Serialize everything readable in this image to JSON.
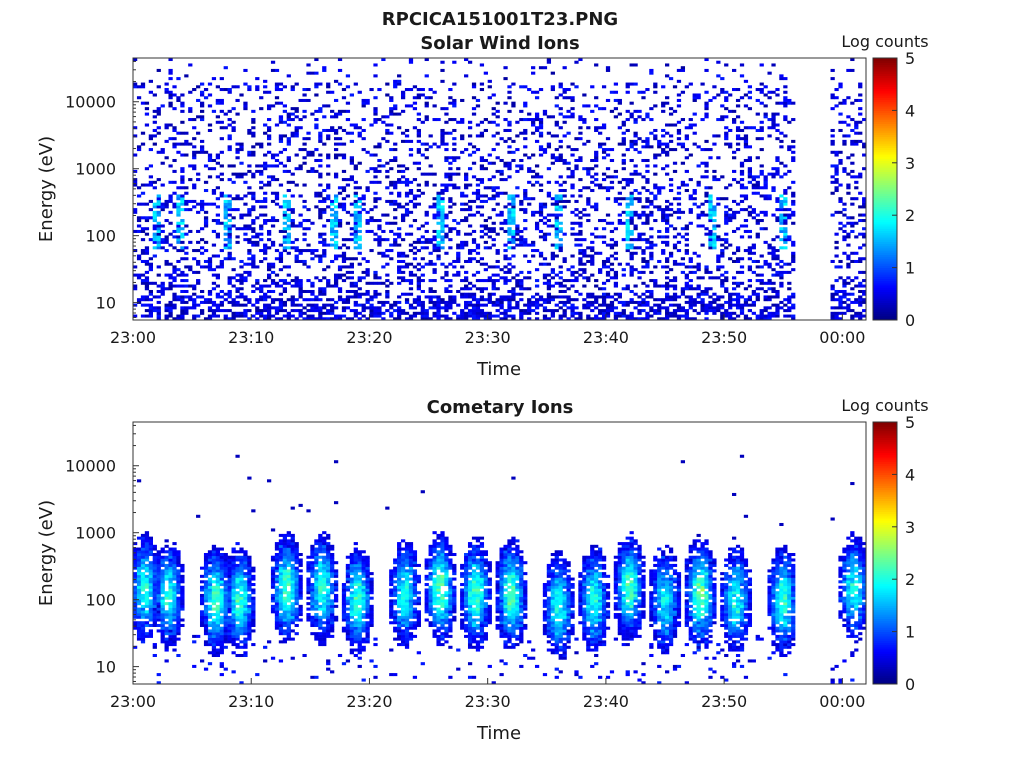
{
  "figure_title": "RPCICA151001T23.PNG",
  "chart_data": [
    {
      "type": "heatmap",
      "title": "Solar Wind Ions",
      "xlabel": "Time",
      "ylabel": "Energy (eV)",
      "x_range": [
        "23:00",
        "00:02"
      ],
      "x_ticks": [
        "23:00",
        "23:10",
        "23:20",
        "23:30",
        "23:40",
        "23:50",
        "00:00"
      ],
      "y_scale": "log",
      "y_range": [
        5.5,
        45000
      ],
      "y_ticks": [
        10,
        100,
        1000,
        10000
      ],
      "y_tick_labels": [
        "10",
        "100",
        "1000",
        "10000"
      ],
      "data_gap": [
        "23:56",
        "23:59"
      ],
      "colorbar": {
        "label": "Log counts",
        "range": [
          0,
          5
        ],
        "ticks": [
          "0",
          "1",
          "2",
          "3",
          "4",
          "5"
        ]
      },
      "colormap": "jet",
      "description_values": {
        "dominant_level": "0-1 (sparse counts across 10 eV - 30 keV)",
        "enhancements_at": [
          "23:02",
          "23:04",
          "23:08",
          "23:13",
          "23:17",
          "23:19",
          "23:26",
          "23:32",
          "23:36",
          "23:42",
          "23:49",
          "23:55"
        ]
      }
    },
    {
      "type": "heatmap",
      "title": "Cometary Ions",
      "xlabel": "Time",
      "ylabel": "Energy (eV)",
      "x_range": [
        "23:00",
        "00:02"
      ],
      "x_ticks": [
        "23:00",
        "23:10",
        "23:20",
        "23:30",
        "23:40",
        "23:50",
        "00:00"
      ],
      "y_scale": "log",
      "y_range": [
        5.5,
        45000
      ],
      "y_ticks": [
        10,
        100,
        1000,
        10000
      ],
      "y_tick_labels": [
        "10",
        "100",
        "1000",
        "10000"
      ],
      "data_gap": [
        "23:56",
        "23:59"
      ],
      "colorbar": {
        "label": "Log counts",
        "range": [
          0,
          5
        ],
        "ticks": [
          "0",
          "1",
          "2",
          "3",
          "4",
          "5"
        ]
      },
      "colormap": "jet",
      "bursts": [
        {
          "t": "23:01",
          "peak_eV": 150,
          "peak_log": 2.0
        },
        {
          "t": "23:03",
          "peak_eV": 120,
          "peak_log": 2.0
        },
        {
          "t": "23:07",
          "peak_eV": 100,
          "peak_log": 2.2
        },
        {
          "t": "23:09",
          "peak_eV": 100,
          "peak_log": 2.1
        },
        {
          "t": "23:13",
          "peak_eV": 150,
          "peak_log": 2.2
        },
        {
          "t": "23:16",
          "peak_eV": 150,
          "peak_log": 2.1
        },
        {
          "t": "23:19",
          "peak_eV": 100,
          "peak_log": 2.1
        },
        {
          "t": "23:23",
          "peak_eV": 120,
          "peak_log": 2.0
        },
        {
          "t": "23:26",
          "peak_eV": 150,
          "peak_log": 2.4
        },
        {
          "t": "23:29",
          "peak_eV": 120,
          "peak_log": 2.2
        },
        {
          "t": "23:32",
          "peak_eV": 120,
          "peak_log": 2.3
        },
        {
          "t": "23:36",
          "peak_eV": 80,
          "peak_log": 2.0
        },
        {
          "t": "23:39",
          "peak_eV": 100,
          "peak_log": 2.0
        },
        {
          "t": "23:42",
          "peak_eV": 150,
          "peak_log": 2.2
        },
        {
          "t": "23:45",
          "peak_eV": 100,
          "peak_log": 1.9
        },
        {
          "t": "23:48",
          "peak_eV": 120,
          "peak_log": 2.4
        },
        {
          "t": "23:51",
          "peak_eV": 100,
          "peak_log": 2.0
        },
        {
          "t": "23:55",
          "peak_eV": 100,
          "peak_log": 2.1
        },
        {
          "t": "00:01",
          "peak_eV": 150,
          "peak_log": 2.0
        }
      ]
    }
  ]
}
